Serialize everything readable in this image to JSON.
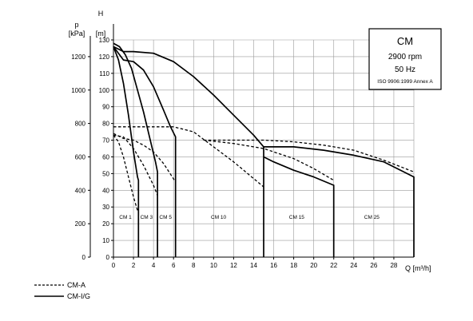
{
  "chart_data": {
    "type": "line",
    "info_box": {
      "title": "CM",
      "speed": "2900 rpm",
      "frequency": "50 Hz",
      "standard": "ISO 9906:1999 Annex A"
    },
    "axes": {
      "x": {
        "label": "Q [m³/h]",
        "range": [
          0,
          30
        ],
        "ticks": [
          "0",
          "2",
          "4",
          "6",
          "8",
          "10",
          "12",
          "14",
          "16",
          "18",
          "20",
          "22",
          "24",
          "26",
          "28"
        ]
      },
      "y_left": {
        "label": "p",
        "unit": "[kPa]",
        "range": [
          0,
          1300
        ],
        "ticks": [
          "0",
          "200",
          "400",
          "600",
          "800",
          "1000",
          "1200"
        ]
      },
      "y_right": {
        "label": "H",
        "unit": "[m]",
        "range": [
          0,
          130
        ],
        "ticks": [
          "0",
          "10",
          "20",
          "30",
          "40",
          "50",
          "60",
          "70",
          "80",
          "90",
          "100",
          "110",
          "120",
          "130"
        ]
      }
    },
    "grid": true,
    "regions": [
      {
        "label": "CM 1",
        "x": 1.2
      },
      {
        "label": "CM 3",
        "x": 3.3
      },
      {
        "label": "CM 5",
        "x": 5.2
      },
      {
        "label": "CM 10",
        "x": 10.5
      },
      {
        "label": "CM 15",
        "x": 18.3
      },
      {
        "label": "CM 25",
        "x": 25.8
      }
    ],
    "legend": [
      {
        "label": "CM-A",
        "style": "dashed"
      },
      {
        "label": "CM-I/G",
        "style": "solid"
      }
    ],
    "series": [
      {
        "group": "CM 1",
        "style": "solid",
        "x": [
          0,
          0.5,
          1.0,
          1.5,
          2.0,
          2.4,
          2.5,
          2.5
        ],
        "y": [
          126,
          118,
          104,
          85,
          63,
          48,
          46,
          0
        ]
      },
      {
        "group": "CM 3",
        "style": "solid",
        "x": [
          0,
          0.6,
          1.2,
          1.8,
          2.4,
          3.0,
          3.6,
          4.2,
          4.4,
          4.4
        ],
        "y": [
          128,
          126,
          121,
          113,
          100,
          87,
          72,
          57,
          51,
          0
        ]
      },
      {
        "group": "CM 5",
        "style": "solid",
        "x": [
          0,
          1,
          2,
          3,
          4,
          5,
          5.7,
          6.2,
          6.2
        ],
        "y": [
          126,
          118,
          117,
          112,
          102,
          88,
          78,
          72,
          0
        ]
      },
      {
        "group": "CM 10",
        "style": "solid",
        "x": [
          0,
          1,
          2,
          4,
          6,
          8,
          10,
          12,
          14,
          15,
          15
        ],
        "y": [
          126,
          123,
          123,
          122,
          117,
          108,
          97,
          85,
          73,
          66,
          0
        ]
      },
      {
        "group": "CM 15",
        "style": "solid",
        "x": [
          15,
          16,
          18,
          20,
          22,
          22
        ],
        "y": [
          60,
          57,
          52,
          48,
          43,
          0
        ]
      },
      {
        "group": "CM 25",
        "style": "solid",
        "x": [
          15,
          18,
          21,
          24,
          27,
          30,
          30
        ],
        "y": [
          66,
          66,
          64,
          61,
          57,
          48,
          0
        ]
      },
      {
        "group": "CM 1",
        "style": "dashed",
        "x": [
          0,
          0.5,
          1.0,
          1.5,
          2.0,
          2.4
        ],
        "y": [
          73,
          69,
          60,
          48,
          36,
          28
        ]
      },
      {
        "group": "CM 3",
        "style": "dashed",
        "x": [
          0,
          1,
          2,
          3,
          4,
          4.4
        ],
        "y": [
          73,
          72,
          65,
          55,
          43,
          37
        ]
      },
      {
        "group": "CM 5",
        "style": "dashed",
        "x": [
          0,
          1,
          2,
          3,
          4,
          5,
          6.2
        ],
        "y": [
          74,
          71,
          70,
          67,
          63,
          56,
          45
        ]
      },
      {
        "group": "CM 10",
        "style": "dashed",
        "x": [
          0,
          2,
          4,
          6,
          8,
          10,
          12,
          15
        ],
        "y": [
          78,
          78,
          78,
          78,
          75,
          66,
          57,
          42
        ]
      },
      {
        "group": "CM 15",
        "style": "dashed",
        "x": [
          9,
          12,
          15,
          18,
          20,
          22
        ],
        "y": [
          70,
          68,
          65,
          59,
          53,
          46
        ]
      },
      {
        "group": "CM 25",
        "style": "dashed",
        "x": [
          9,
          12,
          15,
          18,
          21,
          24,
          27,
          30
        ],
        "y": [
          70,
          70,
          70,
          69,
          67,
          64,
          58,
          51
        ]
      }
    ]
  }
}
